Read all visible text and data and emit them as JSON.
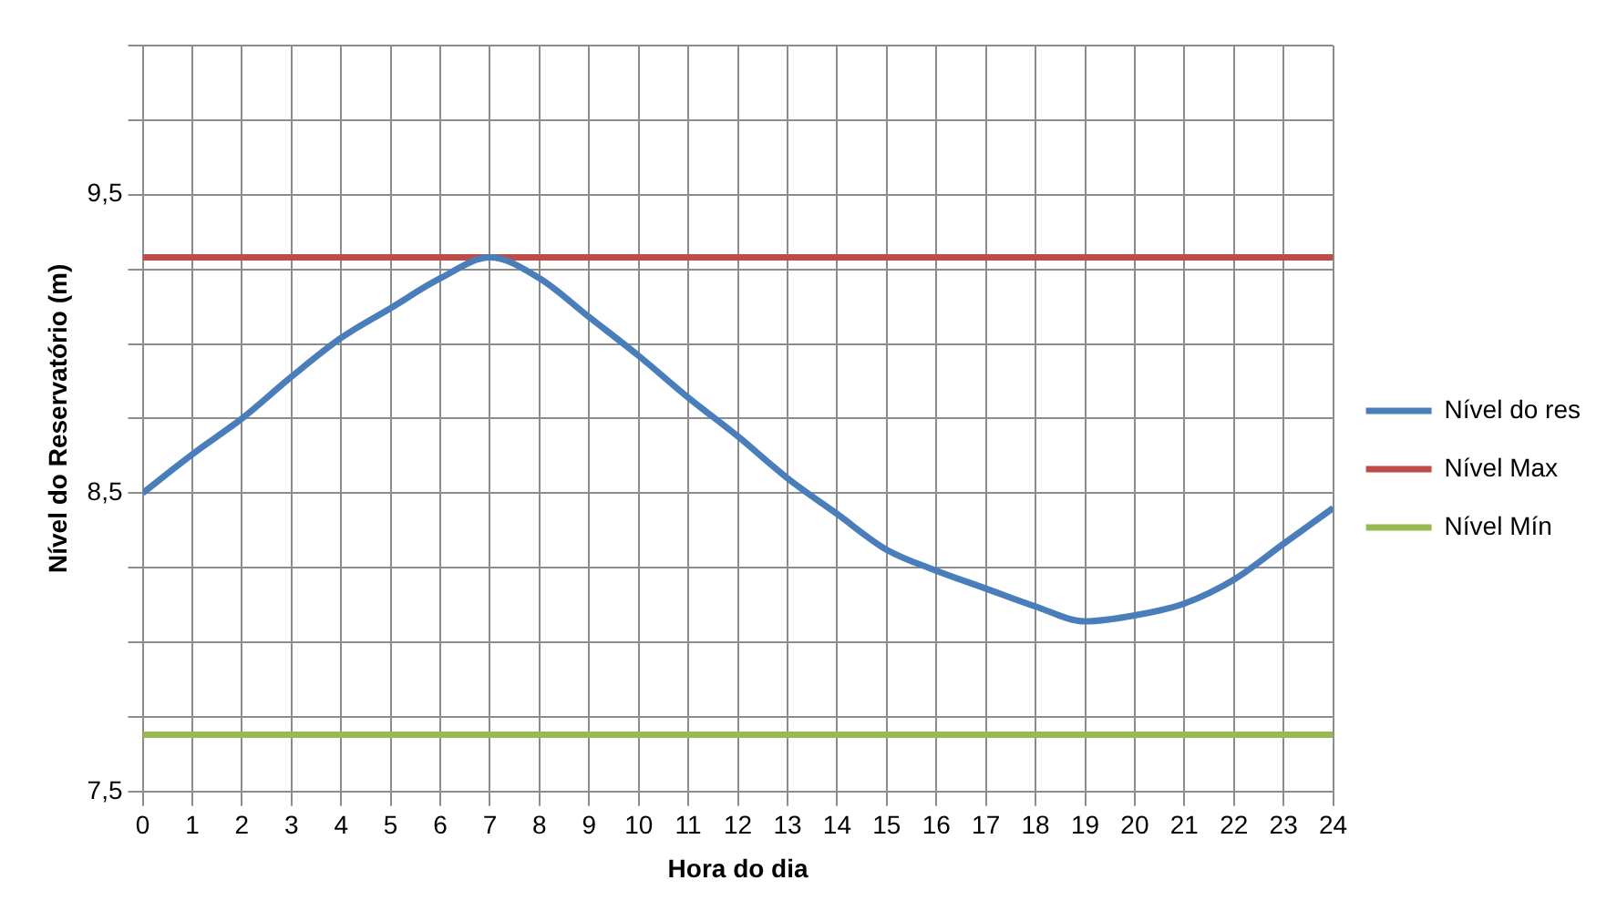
{
  "chart_data": {
    "type": "line",
    "xlabel": "Hora do dia",
    "ylabel": "Nível do Reservatório (m)",
    "x": [
      0,
      1,
      2,
      3,
      4,
      5,
      6,
      7,
      8,
      9,
      10,
      11,
      12,
      13,
      14,
      15,
      16,
      17,
      18,
      19,
      20,
      21,
      22,
      23,
      24
    ],
    "series": [
      {
        "name": "Nível do res",
        "color": "#4a7ebb",
        "values": [
          8.5,
          8.63,
          8.75,
          8.89,
          9.02,
          9.12,
          9.22,
          9.29,
          9.22,
          9.09,
          8.96,
          8.82,
          8.69,
          8.55,
          8.43,
          8.31,
          8.24,
          8.18,
          8.12,
          8.07,
          8.09,
          8.13,
          8.21,
          8.33,
          8.45
        ]
      },
      {
        "name": "Nível Max",
        "color": "#be4b48",
        "values": [
          9.29,
          9.29,
          9.29,
          9.29,
          9.29,
          9.29,
          9.29,
          9.29,
          9.29,
          9.29,
          9.29,
          9.29,
          9.29,
          9.29,
          9.29,
          9.29,
          9.29,
          9.29,
          9.29,
          9.29,
          9.29,
          9.29,
          9.29,
          9.29,
          9.29
        ]
      },
      {
        "name": "Nível Mín",
        "color": "#98b954",
        "values": [
          7.69,
          7.69,
          7.69,
          7.69,
          7.69,
          7.69,
          7.69,
          7.69,
          7.69,
          7.69,
          7.69,
          7.69,
          7.69,
          7.69,
          7.69,
          7.69,
          7.69,
          7.69,
          7.69,
          7.69,
          7.69,
          7.69,
          7.69,
          7.69,
          7.69
        ]
      }
    ],
    "xlim": [
      0,
      24
    ],
    "xticks": [
      0,
      1,
      2,
      3,
      4,
      5,
      6,
      7,
      8,
      9,
      10,
      11,
      12,
      13,
      14,
      15,
      16,
      17,
      18,
      19,
      20,
      21,
      22,
      23,
      24
    ],
    "ylim": [
      7.5,
      10
    ],
    "yticks": [
      {
        "value": 7.5,
        "label": "7,5"
      },
      {
        "value": 7.75,
        "label": null
      },
      {
        "value": 8,
        "label": null
      },
      {
        "value": 8.25,
        "label": null
      },
      {
        "value": 8.5,
        "label": "8,5"
      },
      {
        "value": 8.75,
        "label": null
      },
      {
        "value": 9,
        "label": null
      },
      {
        "value": 9.25,
        "label": null
      },
      {
        "value": 9.5,
        "label": "9,5"
      },
      {
        "value": 9.75,
        "label": null
      },
      {
        "value": 10,
        "label": null
      }
    ],
    "grid": true,
    "legend": "right",
    "marker": "none",
    "line_style": "solid"
  }
}
